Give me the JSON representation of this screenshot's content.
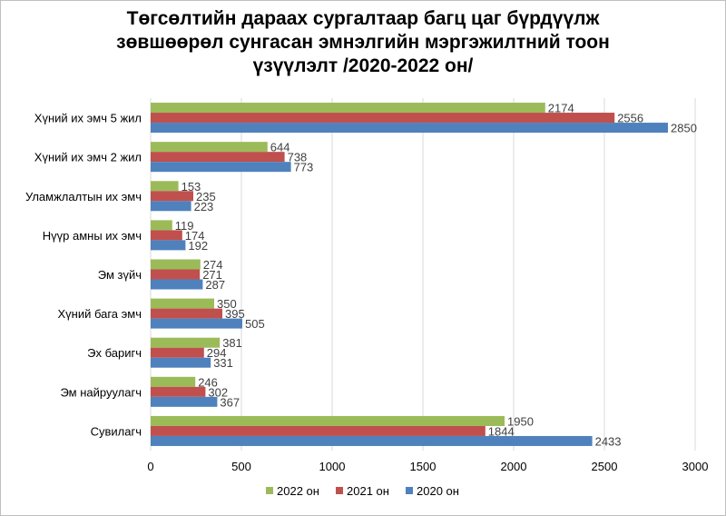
{
  "chart_data": {
    "type": "bar",
    "orientation": "horizontal",
    "title_lines": [
      "Төгсөлтийн дараах сургалтаар багц цаг бүрдүүлж",
      "зөвшөөрөл сунгасан эмнэлгийн мэргэжилтний тоон",
      "үзүүлэлт /2020-2022 он/"
    ],
    "categories": [
      "Хүний их эмч 5 жил",
      "Хүний их эмч 2 жил",
      "Уламжлалтын их эмч",
      "Нүүр амны их эмч",
      "Эм зүйч",
      "Хүний бага эмч",
      "Эх баригч",
      "Эм найруулагч",
      "Сувилагч"
    ],
    "series": [
      {
        "name": "2022 он",
        "color": "#9bbb59",
        "values": [
          2174,
          644,
          153,
          119,
          274,
          350,
          381,
          246,
          1950
        ]
      },
      {
        "name": "2021 он",
        "color": "#c0504d",
        "values": [
          2556,
          738,
          235,
          174,
          271,
          395,
          294,
          302,
          1844
        ]
      },
      {
        "name": "2020 он",
        "color": "#4f81bd",
        "values": [
          2850,
          773,
          223,
          192,
          287,
          505,
          331,
          367,
          2433
        ]
      }
    ],
    "xlim": [
      0,
      3000
    ],
    "xticks": [
      0,
      500,
      1000,
      1500,
      2000,
      2500,
      3000
    ],
    "xgrid": true,
    "legend_position": "bottom"
  }
}
